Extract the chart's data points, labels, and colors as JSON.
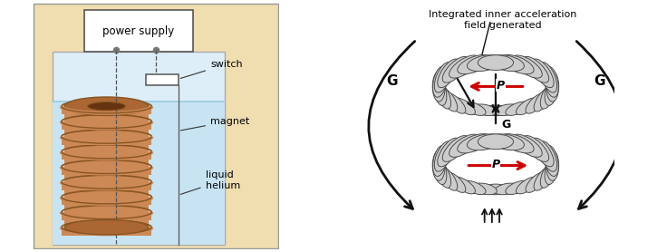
{
  "bg_color_left": "#f0ddb0",
  "coil_color_light": "#cc8855",
  "coil_color_dark": "#885522",
  "coil_color_mid": "#aa6633",
  "coil_inner": "#663311",
  "toroid_light": "#cccccc",
  "toroid_mid": "#aaaaaa",
  "toroid_dark": "#777777",
  "toroid_edge": "#444444",
  "arrow_color": "#111111",
  "red_arrow": "#cc0000",
  "label_switch": "switch",
  "label_magnet": "magnet",
  "label_liquid": "liquid\nhelium",
  "label_power": "power supply",
  "label_title": "Integrated inner acceleration\nfield generated",
  "label_G": "G",
  "label_P": "P",
  "beaker_fill": "#ddeef8",
  "liquid_fill": "#c8e4f2",
  "wire_color": "#555555"
}
